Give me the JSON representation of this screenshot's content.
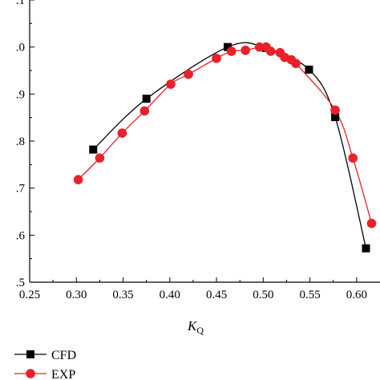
{
  "chart_data": {
    "type": "line",
    "xlabel_main": "K",
    "xlabel_sub": "Q",
    "ylabel": "",
    "xlim": [
      0.25,
      0.625
    ],
    "ylim": [
      0.5,
      1.1
    ],
    "x_ticks": [
      "0.25",
      "0.30",
      "0.35",
      "0.40",
      "0.45",
      "0.50",
      "0.55",
      "0.60"
    ],
    "x_tick_values": [
      0.25,
      0.3,
      0.35,
      0.4,
      0.45,
      0.5,
      0.55,
      0.6
    ],
    "y_ticks": [
      ".5",
      ".6",
      ".7",
      ".8",
      ".9",
      ".0",
      ".1"
    ],
    "y_tick_values": [
      0.5,
      0.6,
      0.7,
      0.8,
      0.9,
      1.0,
      1.1
    ],
    "series": [
      {
        "name": "CFD",
        "color": "#000000",
        "marker": "square",
        "x": [
          0.318,
          0.375,
          0.462,
          0.503,
          0.549,
          0.577,
          0.61
        ],
        "y": [
          0.782,
          0.89,
          1.0,
          0.998,
          0.952,
          0.851,
          0.572
        ]
      },
      {
        "name": "EXP",
        "color": "#e8212a",
        "marker": "circle",
        "x": [
          0.302,
          0.325,
          0.349,
          0.373,
          0.401,
          0.42,
          0.45,
          0.466,
          0.481,
          0.496,
          0.503,
          0.508,
          0.518,
          0.523,
          0.53,
          0.535,
          0.577,
          0.596,
          0.616
        ],
        "y": [
          0.718,
          0.764,
          0.817,
          0.864,
          0.921,
          0.942,
          0.976,
          0.991,
          0.993,
          1.0,
          1.0,
          0.991,
          0.988,
          0.978,
          0.973,
          0.965,
          0.866,
          0.764,
          0.625
        ]
      }
    ],
    "legend_position": "bottom-left"
  }
}
